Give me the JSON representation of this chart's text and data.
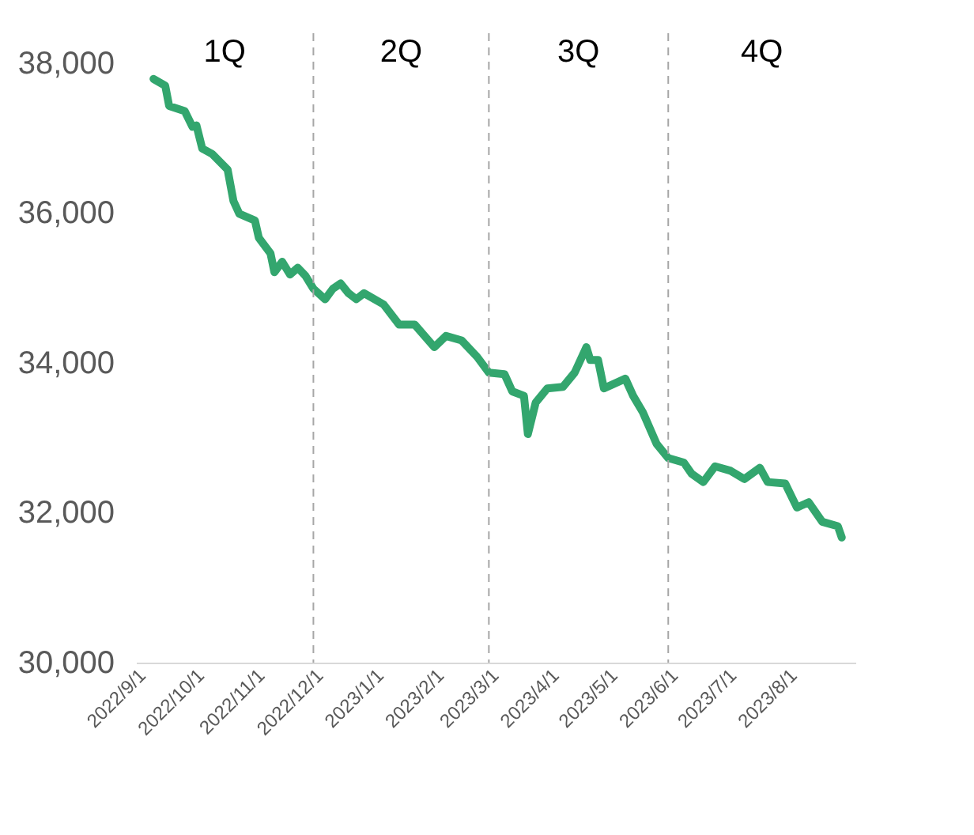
{
  "chart_data": {
    "type": "line",
    "x": [
      "2022-09-10",
      "2022-09-16",
      "2022-09-18",
      "2022-09-26",
      "2022-09-30",
      "2022-10-02",
      "2022-10-05",
      "2022-10-10",
      "2022-10-18",
      "2022-10-21",
      "2022-10-24",
      "2022-11-01",
      "2022-11-03",
      "2022-11-09",
      "2022-11-11",
      "2022-11-15",
      "2022-11-19",
      "2022-11-23",
      "2022-11-27",
      "2022-12-01",
      "2022-12-07",
      "2022-12-11",
      "2022-12-15",
      "2022-12-19",
      "2022-12-23",
      "2022-12-27",
      "2023-01-06",
      "2023-01-14",
      "2023-01-22",
      "2023-02-01",
      "2023-02-07",
      "2023-02-15",
      "2023-02-23",
      "2023-03-01",
      "2023-03-09",
      "2023-03-13",
      "2023-03-19",
      "2023-03-21",
      "2023-03-25",
      "2023-03-31",
      "2023-04-08",
      "2023-04-14",
      "2023-04-20",
      "2023-04-22",
      "2023-04-26",
      "2023-04-29",
      "2023-05-10",
      "2023-05-14",
      "2023-05-19",
      "2023-05-26",
      "2023-06-01",
      "2023-06-09",
      "2023-06-13",
      "2023-06-19",
      "2023-06-25",
      "2023-07-03",
      "2023-07-10",
      "2023-07-18",
      "2023-07-22",
      "2023-07-31",
      "2023-08-06",
      "2023-08-12",
      "2023-08-19",
      "2023-08-27",
      "2023-08-29"
    ],
    "series": [
      {
        "color": "#33a66e",
        "values": [
          37790,
          37700,
          37430,
          37360,
          37150,
          37170,
          36860,
          36790,
          36580,
          36160,
          35990,
          35900,
          35670,
          35460,
          35210,
          35350,
          35180,
          35270,
          35160,
          34990,
          34850,
          34990,
          35060,
          34930,
          34850,
          34930,
          34780,
          34510,
          34510,
          34210,
          34360,
          34300,
          34080,
          33870,
          33850,
          33620,
          33560,
          33050,
          33470,
          33660,
          33680,
          33870,
          34210,
          34040,
          34040,
          33660,
          33790,
          33560,
          33340,
          32920,
          32730,
          32670,
          32520,
          32410,
          32620,
          32560,
          32450,
          32600,
          32410,
          32390,
          32070,
          32140,
          31880,
          31820,
          31670
        ]
      }
    ],
    "xlim": [
      "2022-09-01",
      "2023-09-05"
    ],
    "xticks": [
      {
        "value": "2022-09-01",
        "label": "2022/9/1"
      },
      {
        "value": "2022-10-01",
        "label": "2022/10/1"
      },
      {
        "value": "2022-11-01",
        "label": "2022/11/1"
      },
      {
        "value": "2022-12-01",
        "label": "2022/12/1"
      },
      {
        "value": "2023-01-01",
        "label": "2023/1/1"
      },
      {
        "value": "2023-02-01",
        "label": "2023/2/1"
      },
      {
        "value": "2023-03-01",
        "label": "2023/3/1"
      },
      {
        "value": "2023-04-01",
        "label": "2023/4/1"
      },
      {
        "value": "2023-05-01",
        "label": "2023/5/1"
      },
      {
        "value": "2023-06-01",
        "label": "2023/6/1"
      },
      {
        "value": "2023-07-01",
        "label": "2023/7/1"
      },
      {
        "value": "2023-08-01",
        "label": "2023/8/1"
      }
    ],
    "ylim": [
      30000,
      38400
    ],
    "yticks": [
      {
        "value": 30000,
        "label": "30,000"
      },
      {
        "value": 32000,
        "label": "32,000"
      },
      {
        "value": 34000,
        "label": "34,000"
      },
      {
        "value": 36000,
        "label": "36,000"
      },
      {
        "value": 38000,
        "label": "38,000"
      }
    ],
    "ref_lines": [
      {
        "axis": "x",
        "value": "2022-12-01",
        "color": "#a6a6a6",
        "line_style": "dashed"
      },
      {
        "axis": "x",
        "value": "2023-03-01",
        "color": "#a6a6a6",
        "line_style": "dashed"
      },
      {
        "axis": "x",
        "value": "2023-06-01",
        "color": "#a6a6a6",
        "line_style": "dashed"
      }
    ],
    "annotations": [
      "1Q",
      "2Q",
      "3Q",
      "4Q"
    ],
    "grid": false,
    "legend": false,
    "marker": "none",
    "line_style": "solid"
  }
}
